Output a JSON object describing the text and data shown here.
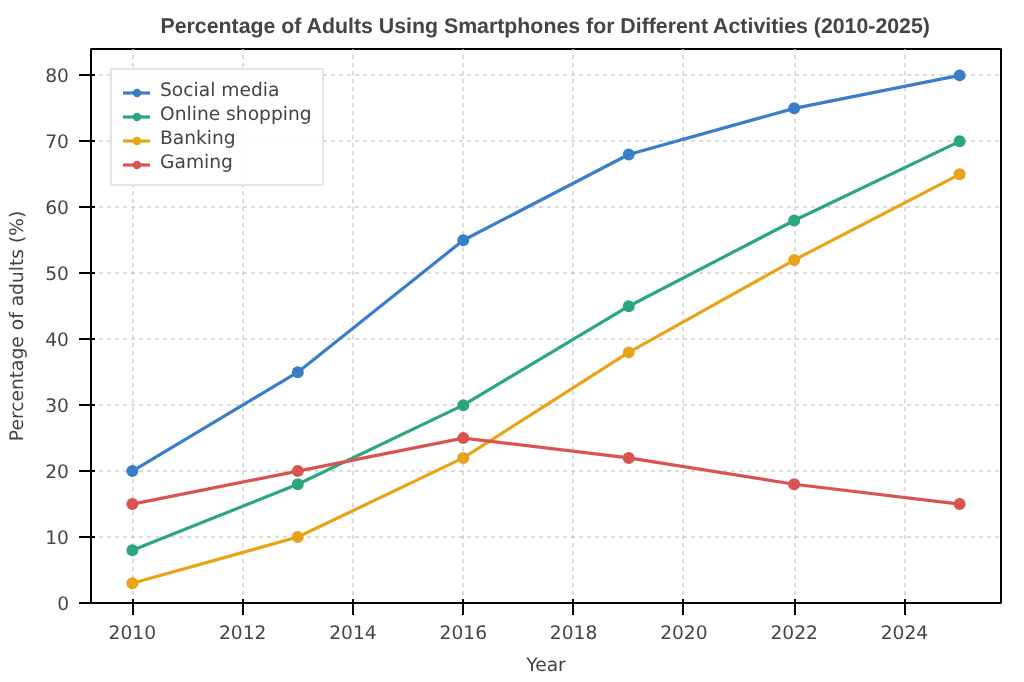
{
  "chart_data": {
    "type": "line",
    "title": "Percentage of Adults Using Smartphones for Different Activities (2010-2025)",
    "xlabel": "Year",
    "ylabel": "Percentage of adults (%)",
    "x": [
      2010,
      2013,
      2016,
      2019,
      2022,
      2025
    ],
    "series": [
      {
        "name": "Social media",
        "color": "#3a7dc9",
        "values": [
          20,
          35,
          55,
          68,
          75,
          80
        ]
      },
      {
        "name": "Online shopping",
        "color": "#2aa87a",
        "values": [
          8,
          18,
          30,
          45,
          58,
          70
        ]
      },
      {
        "name": "Banking",
        "color": "#e8a317",
        "values": [
          3,
          10,
          22,
          38,
          52,
          65
        ]
      },
      {
        "name": "Gaming",
        "color": "#d9534f",
        "values": [
          15,
          20,
          25,
          22,
          18,
          15
        ]
      }
    ],
    "xlim": [
      2009.25,
      2025.75
    ],
    "xticks": [
      2010,
      2012,
      2014,
      2016,
      2018,
      2020,
      2022,
      2024
    ],
    "ylim": [
      0,
      84
    ],
    "yticks": [
      0,
      10,
      20,
      30,
      40,
      50,
      60,
      70,
      80
    ],
    "grid": true,
    "legend": "top left",
    "marker": "circle",
    "line_style": "solid"
  }
}
